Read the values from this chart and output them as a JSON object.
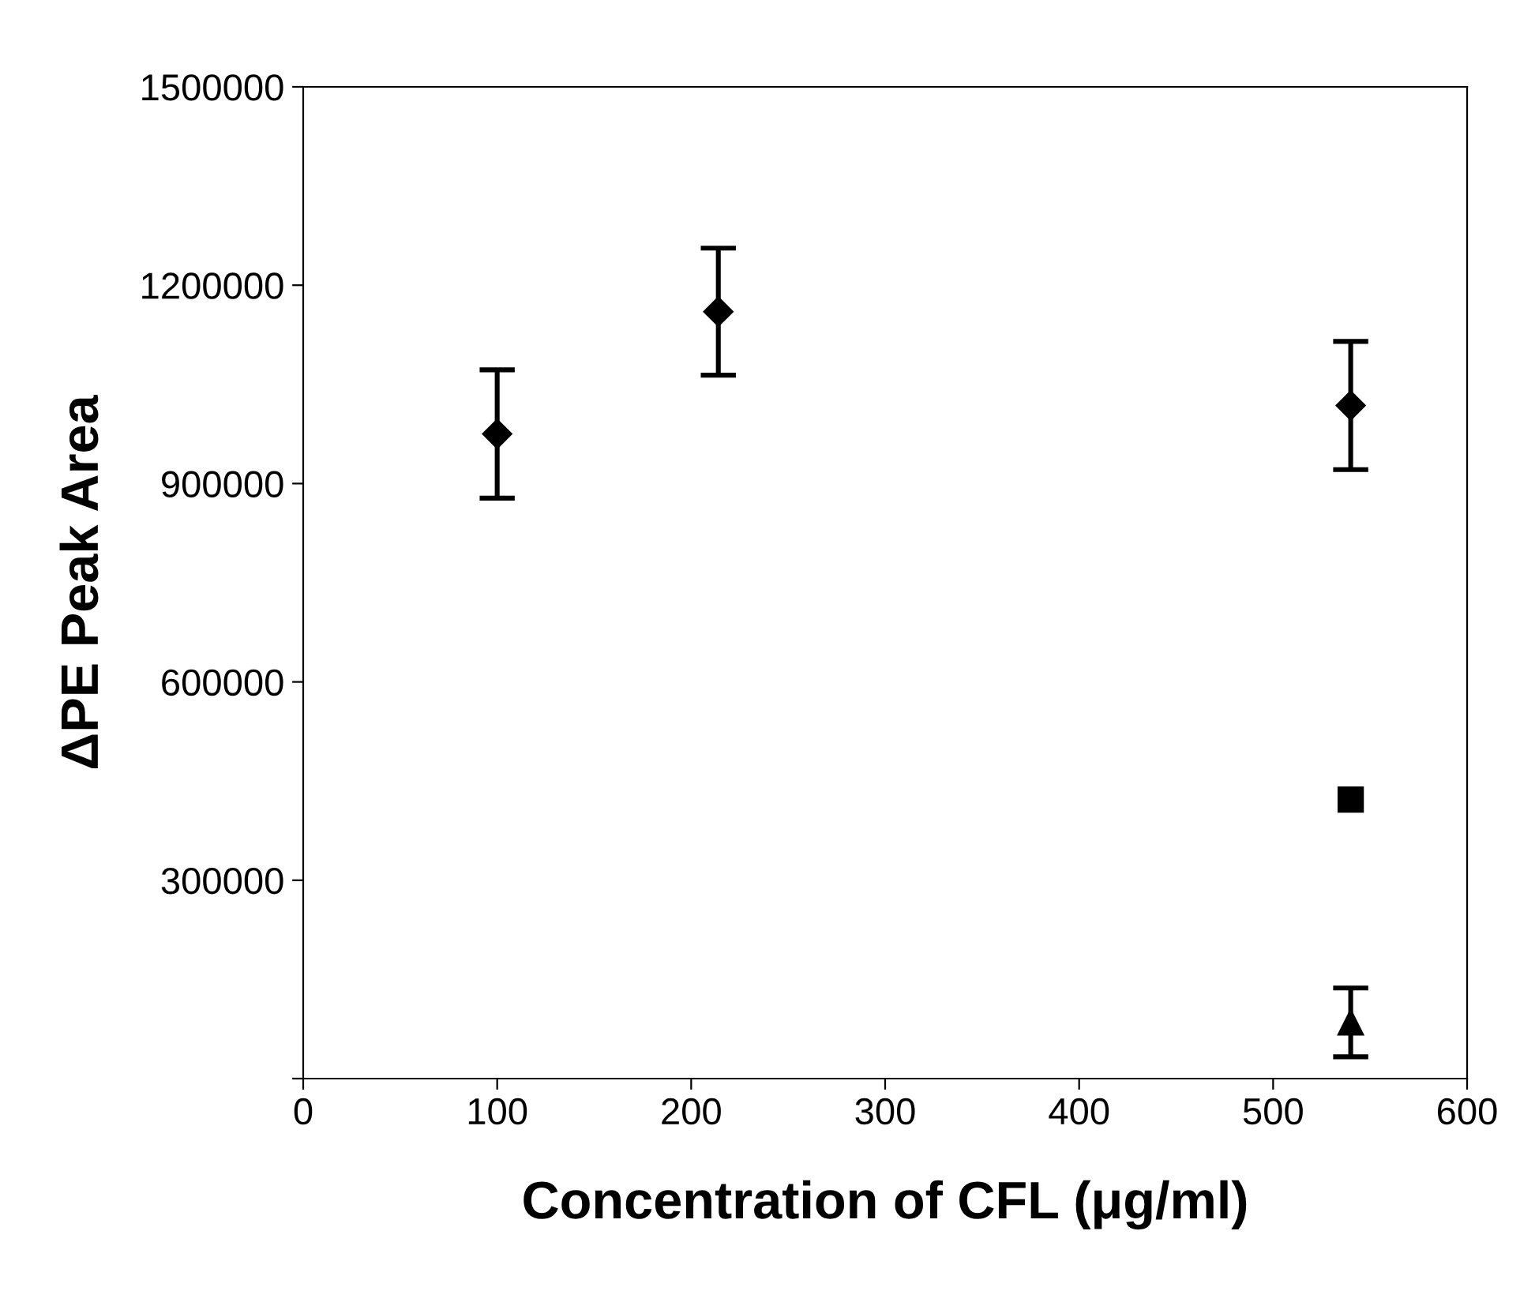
{
  "chart_data": {
    "type": "scatter",
    "xlabel": "Concentration of CFL (μg/ml)",
    "ylabel": "ΔPE Peak Area",
    "series": [
      {
        "color": "#000000",
        "marker": "diamond",
        "x": [
          100,
          214,
          540
        ],
        "values": [
          975000,
          1160000,
          1018000
        ],
        "errors": [
          97000,
          96000,
          97000
        ]
      },
      {
        "color": "#000000",
        "marker": "square",
        "x": [
          540
        ],
        "values": [
          422000
        ]
      },
      {
        "color": "#000000",
        "marker": "triangle",
        "x": [
          540
        ],
        "values": [
          85000
        ],
        "errors": [
          52000
        ]
      }
    ],
    "xlim": [
      0,
      600
    ],
    "xticks": [
      0,
      100,
      200,
      300,
      400,
      500,
      600
    ],
    "ylim": [
      0,
      1500000
    ],
    "yticks": [
      {
        "value": 0,
        "label": null
      },
      300000,
      600000,
      900000,
      1200000,
      1500000
    ],
    "grid": false,
    "legend": false
  }
}
